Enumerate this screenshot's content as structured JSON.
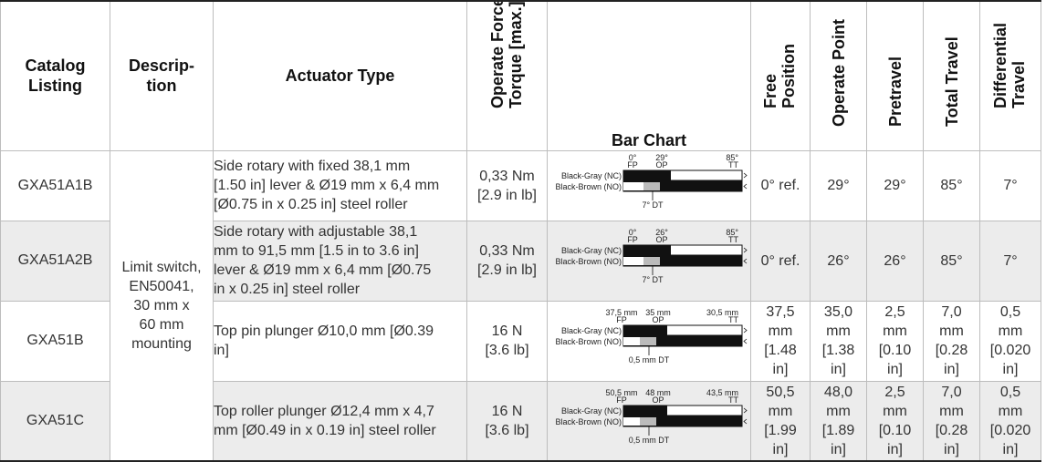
{
  "headers": {
    "catalog": [
      "Catalog",
      "Listing"
    ],
    "description": [
      "Descrip-",
      "tion"
    ],
    "actuator": "Actuator Type",
    "force": [
      "Operate Force or",
      "Torque [max.]"
    ],
    "bar_chart": "Bar Chart",
    "free_position": [
      "Free",
      "Position"
    ],
    "operate_point": "Operate Point",
    "pretravel": "Pretravel",
    "total_travel": "Total Travel",
    "differential": [
      "Differential",
      "Travel"
    ]
  },
  "description": [
    "Limit switch,",
    "EN50041,",
    "30 mm x",
    "60 mm",
    "mounting"
  ],
  "bar_labels": {
    "nc": "Black-Gray (NC)",
    "no": "Black-Brown (NO)",
    "fp": "FP",
    "op": "OP",
    "tt": "TT"
  },
  "rows": [
    {
      "catalog": "GXA51A1B",
      "actuator": [
        "Side rotary with fixed 38,1 mm",
        "[1.50 in] lever & Ø19 mm x 6,4 mm",
        "[Ø0.75 in x 0.25 in] steel roller"
      ],
      "force": [
        "0,33 Nm",
        "[2.9 in lb]"
      ],
      "bar": {
        "fp_val": "0°",
        "op_val": "29°",
        "tt_val": "85°",
        "dt": "7° DT"
      },
      "free": [
        "0° ref."
      ],
      "operate": [
        "29°"
      ],
      "pretravel": [
        "29°"
      ],
      "total": [
        "85°"
      ],
      "diff": [
        "7°"
      ]
    },
    {
      "catalog": "GXA51A2B",
      "actuator": [
        "Side rotary with adjustable 38,1",
        "mm to 91,5 mm [1.5 in to 3.6 in]",
        "lever & Ø19 mm x 6,4 mm [Ø0.75",
        "in x 0.25 in] steel roller"
      ],
      "force": [
        "0,33 Nm",
        "[2.9 in lb]"
      ],
      "bar": {
        "fp_val": "0°",
        "op_val": "26°",
        "tt_val": "85°",
        "dt": "7° DT"
      },
      "free": [
        "0° ref."
      ],
      "operate": [
        "26°"
      ],
      "pretravel": [
        "26°"
      ],
      "total": [
        "85°"
      ],
      "diff": [
        "7°"
      ]
    },
    {
      "catalog": "GXA51B",
      "actuator": [
        "Top pin plunger Ø10,0 mm [Ø0.39",
        "in]"
      ],
      "force": [
        "16 N",
        "[3.6 lb]"
      ],
      "bar": {
        "fp_val": "37,5 mm",
        "op_val": "35 mm",
        "tt_val": "30,5 mm",
        "dt": "0,5 mm DT"
      },
      "free": [
        "37,5",
        "mm",
        "[1.48",
        "in]"
      ],
      "operate": [
        "35,0",
        "mm",
        "[1.38",
        "in]"
      ],
      "pretravel": [
        "2,5",
        "mm",
        "[0.10",
        "in]"
      ],
      "total": [
        "7,0",
        "mm",
        "[0.28",
        "in]"
      ],
      "diff": [
        "0,5",
        "mm",
        "[0.020",
        "in]"
      ]
    },
    {
      "catalog": "GXA51C",
      "actuator": [
        "Top roller plunger Ø12,4 mm x 4,7",
        "mm [Ø0.49 in x 0.19 in] steel roller"
      ],
      "force": [
        "16 N",
        "[3.6 lb]"
      ],
      "bar": {
        "fp_val": "50,5 mm",
        "op_val": "48 mm",
        "tt_val": "43,5 mm",
        "dt": "0,5 mm DT"
      },
      "free": [
        "50,5",
        "mm",
        "[1.99",
        "in]"
      ],
      "operate": [
        "48,0",
        "mm",
        "[1.89",
        "in]"
      ],
      "pretravel": [
        "2,5",
        "mm",
        "[0.10",
        "in]"
      ],
      "total": [
        "7,0",
        "mm",
        "[0.28",
        "in]"
      ],
      "diff": [
        "0,5",
        "mm",
        "[0.020",
        "in]"
      ]
    }
  ]
}
